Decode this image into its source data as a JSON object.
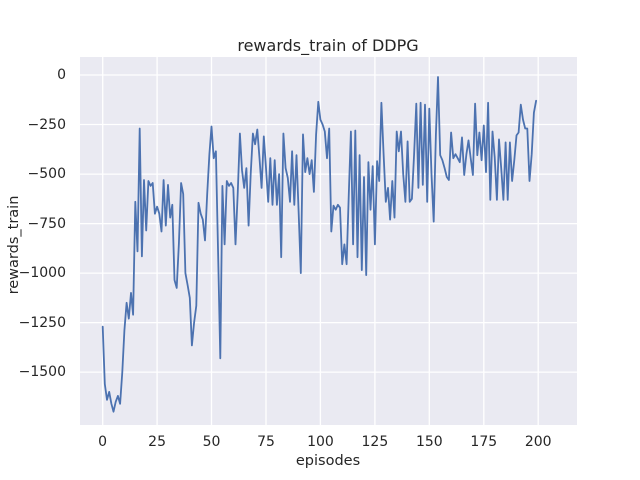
{
  "figure": {
    "title": "rewards_train of DDPG"
  },
  "chart_data": {
    "type": "line",
    "title": "rewards_train of DDPG",
    "xlabel": "episodes",
    "ylabel": "rewards_train",
    "x_ticks": [
      0,
      25,
      50,
      75,
      100,
      125,
      150,
      175,
      200
    ],
    "y_ticks": [
      0,
      -250,
      -500,
      -750,
      -1000,
      -1250,
      -1500
    ],
    "xlim": [
      -10.4,
      217.8
    ],
    "ylim": [
      -1767,
      91
    ],
    "grid": true,
    "legend_position": "none",
    "background_color": "#eaeaf2",
    "grid_color": "#ffffff",
    "line_color": "#4c72b0",
    "series": [
      {
        "name": "rewards_train",
        "x_start": 0,
        "x_step": 1,
        "values": [
          -1270,
          -1560,
          -1640,
          -1600,
          -1660,
          -1700,
          -1650,
          -1620,
          -1660,
          -1500,
          -1290,
          -1150,
          -1230,
          -1100,
          -1210,
          -640,
          -890,
          -270,
          -915,
          -530,
          -785,
          -535,
          -560,
          -545,
          -700,
          -665,
          -700,
          -790,
          -530,
          -760,
          -555,
          -720,
          -655,
          -1035,
          -1075,
          -850,
          -545,
          -600,
          -1000,
          -1060,
          -1125,
          -1365,
          -1250,
          -1165,
          -645,
          -700,
          -730,
          -835,
          -600,
          -400,
          -260,
          -420,
          -385,
          -900,
          -1430,
          -560,
          -855,
          -535,
          -560,
          -545,
          -570,
          -855,
          -600,
          -295,
          -480,
          -570,
          -470,
          -760,
          -500,
          -295,
          -350,
          -275,
          -420,
          -570,
          -310,
          -470,
          -640,
          -420,
          -655,
          -430,
          -655,
          -500,
          -920,
          -295,
          -470,
          -520,
          -640,
          -385,
          -655,
          -405,
          -700,
          -1000,
          -300,
          -490,
          -420,
          -500,
          -430,
          -590,
          -300,
          -135,
          -225,
          -250,
          -285,
          -420,
          -270,
          -790,
          -660,
          -680,
          -655,
          -670,
          -955,
          -855,
          -955,
          -600,
          -285,
          -855,
          -280,
          -920,
          -405,
          -985,
          -515,
          -1010,
          -440,
          -680,
          -460,
          -855,
          -435,
          -535,
          -140,
          -400,
          -640,
          -570,
          -730,
          -535,
          -720,
          -285,
          -385,
          -285,
          -500,
          -640,
          -335,
          -640,
          -625,
          -400,
          -145,
          -570,
          -140,
          -555,
          -150,
          -640,
          -170,
          -500,
          -740,
          -300,
          -10,
          -405,
          -430,
          -470,
          -515,
          -530,
          -290,
          -420,
          -400,
          -420,
          -440,
          -315,
          -505,
          -400,
          -330,
          -420,
          -505,
          -145,
          -405,
          -290,
          -430,
          -255,
          -490,
          -140,
          -630,
          -285,
          -415,
          -630,
          -325,
          -470,
          -630,
          -340,
          -630,
          -340,
          -535,
          -430,
          -305,
          -290,
          -150,
          -225,
          -270,
          -270,
          -535,
          -400,
          -190,
          -130
        ]
      }
    ]
  }
}
